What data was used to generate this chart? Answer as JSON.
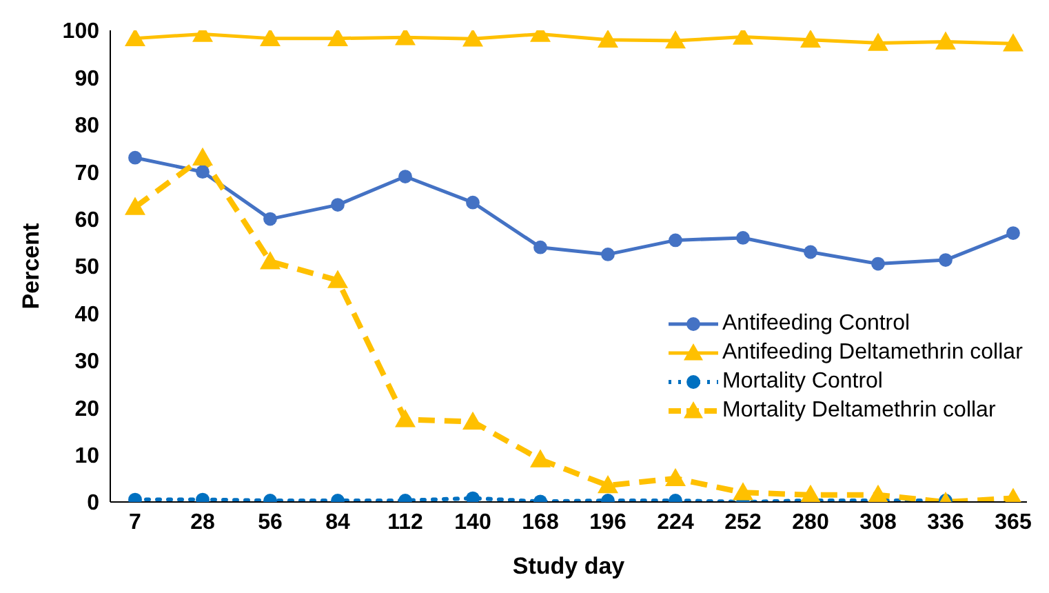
{
  "chart_data": {
    "type": "line",
    "xlabel": "Study day",
    "ylabel": "Percent",
    "categories": [
      "7",
      "28",
      "56",
      "84",
      "112",
      "140",
      "168",
      "196",
      "224",
      "252",
      "280",
      "308",
      "336",
      "365"
    ],
    "ylim": [
      0,
      100
    ],
    "yticks": [
      0,
      10,
      20,
      30,
      40,
      50,
      60,
      70,
      80,
      90,
      100
    ],
    "grid": false,
    "legend": "right",
    "series": [
      {
        "name": "Antifeeding Control",
        "color": "#4472c4",
        "marker": "circle",
        "line_style": "solid",
        "values": [
          73,
          70,
          60,
          63,
          69,
          63.5,
          54,
          52.5,
          55.5,
          56,
          53,
          50.5,
          51.3,
          57
        ]
      },
      {
        "name": "Antifeeding Deltamethrin collar",
        "color": "#ffc000",
        "marker": "triangle",
        "line_style": "solid",
        "values": [
          98.3,
          99.2,
          98.3,
          98.3,
          98.5,
          98.2,
          99.2,
          98,
          97.8,
          98.6,
          98,
          97.3,
          97.6,
          97.2
        ]
      },
      {
        "name": "Mortality Control",
        "color": "#0070c0",
        "marker": "circle",
        "line_style": "dotted",
        "values": [
          0.5,
          0.5,
          0.3,
          0.3,
          0.3,
          0.8,
          0.1,
          0.3,
          0.3,
          0,
          0.3,
          0.3,
          0.3,
          null
        ]
      },
      {
        "name": "Mortality Deltamethrin collar",
        "color": "#ffc000",
        "marker": "triangle",
        "line_style": "dashed",
        "values": [
          62.5,
          73,
          51,
          47,
          17.5,
          17,
          9,
          3.5,
          5,
          2,
          1.5,
          1.5,
          0,
          0.8
        ]
      }
    ]
  }
}
